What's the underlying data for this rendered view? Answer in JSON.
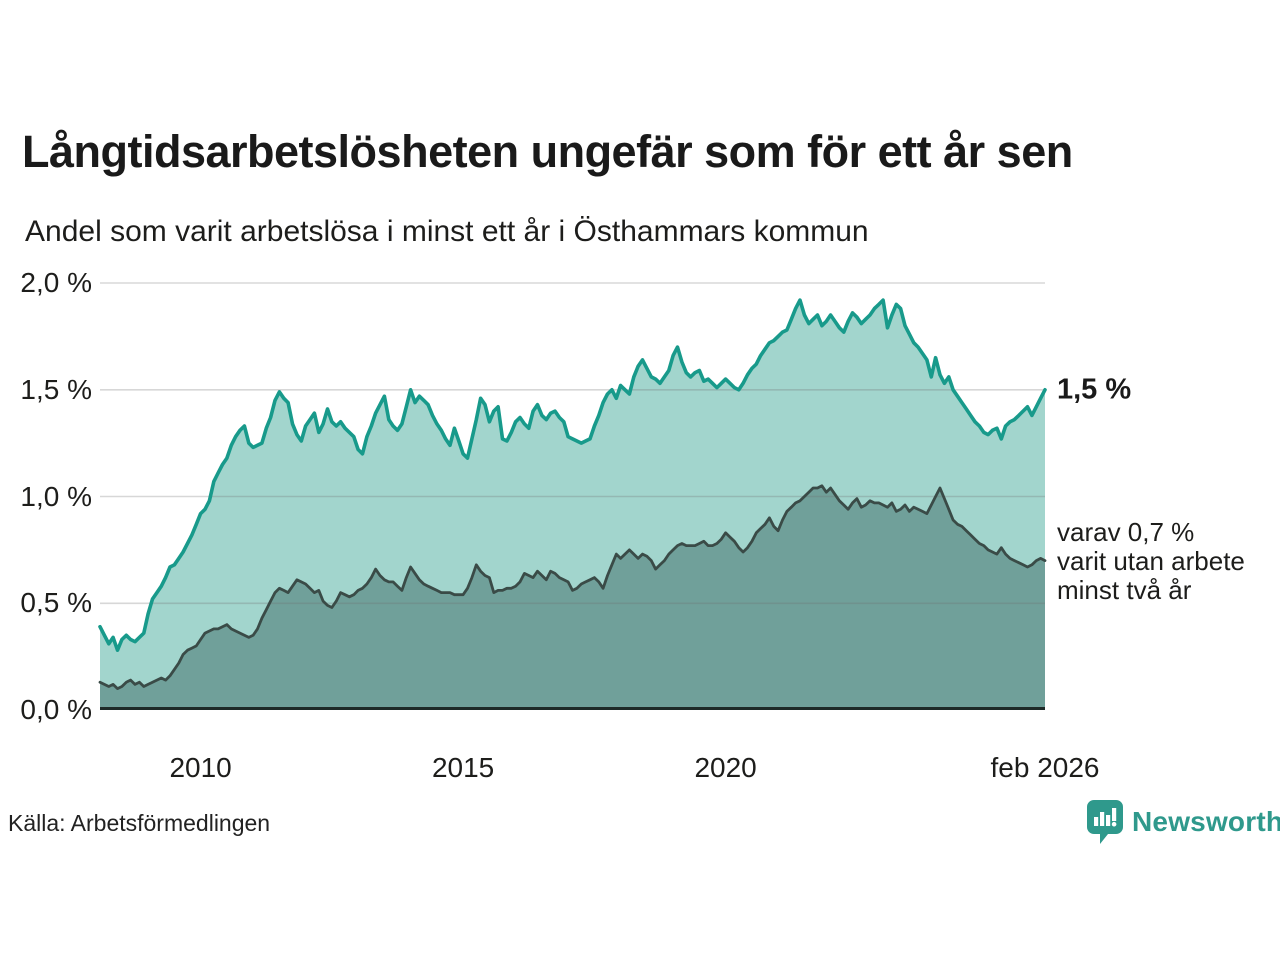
{
  "title": "Långtidsarbetslösheten ungefär som för ett år sen",
  "subtitle": "Andel som varit arbetslösa i minst ett år i Östhammars kommun",
  "source": "Källa: Arbetsförmedlingen",
  "brand": {
    "name": "Newsworthy",
    "icon": "newsworthy-bubble-chart-icon"
  },
  "annotations": {
    "end_label_primary": "1,5 %",
    "end_label_secondary_lines": [
      "varav 0,7 %",
      "varit utan arbete",
      "minst två år"
    ]
  },
  "colors": {
    "teal_line": "#189a8b",
    "light_fill": "#a2d5cd",
    "dark_fill": "#70a09a",
    "dark_line": "#3a4b47",
    "grid": "rgba(110,110,110,0.28)",
    "grid_top": "#d9d9d9",
    "baseline": "#1e2a28",
    "brand_teal": "#2f998c"
  },
  "chart_data": {
    "type": "area",
    "title": "Långtidsarbetslösheten ungefär som för ett år sen",
    "subtitle": "Andel som varit arbetslösa i minst ett år i Östhammars kommun",
    "unit": "%",
    "x_start": "2008-02",
    "x_end": "2026-02",
    "interval": "monthly",
    "x_domain": [
      2008.083,
      2026.083
    ],
    "ylim": [
      0,
      2.0
    ],
    "grid": true,
    "y_ticks": [
      {
        "label": "2,0 %",
        "value": 2.0
      },
      {
        "label": "1,5 %",
        "value": 1.5
      },
      {
        "label": "1,0 %",
        "value": 1.0
      },
      {
        "label": "0,5 %",
        "value": 0.5
      },
      {
        "label": "0,0 %",
        "value": 0.0
      }
    ],
    "x_ticks": [
      {
        "label": "2010",
        "year": 2010.0
      },
      {
        "label": "2015",
        "year": 2015.0
      },
      {
        "label": "2020",
        "year": 2020.0
      },
      {
        "label": "feb 2026",
        "year": 2026.083
      }
    ],
    "series": [
      {
        "name": "Andel arbetslösa minst ett år",
        "end_value": 1.5,
        "end_label": "1,5 %",
        "values": [
          0.39,
          0.35,
          0.31,
          0.34,
          0.28,
          0.33,
          0.35,
          0.33,
          0.32,
          0.34,
          0.36,
          0.45,
          0.52,
          0.55,
          0.58,
          0.62,
          0.67,
          0.68,
          0.71,
          0.74,
          0.78,
          0.82,
          0.87,
          0.92,
          0.94,
          0.98,
          1.07,
          1.11,
          1.15,
          1.18,
          1.24,
          1.28,
          1.31,
          1.33,
          1.25,
          1.23,
          1.24,
          1.25,
          1.32,
          1.37,
          1.45,
          1.49,
          1.46,
          1.44,
          1.34,
          1.29,
          1.26,
          1.33,
          1.36,
          1.39,
          1.3,
          1.34,
          1.41,
          1.35,
          1.33,
          1.35,
          1.32,
          1.3,
          1.28,
          1.22,
          1.2,
          1.28,
          1.33,
          1.39,
          1.43,
          1.47,
          1.36,
          1.33,
          1.31,
          1.34,
          1.42,
          1.5,
          1.44,
          1.47,
          1.45,
          1.43,
          1.38,
          1.34,
          1.31,
          1.27,
          1.24,
          1.32,
          1.26,
          1.2,
          1.18,
          1.27,
          1.36,
          1.46,
          1.43,
          1.35,
          1.4,
          1.42,
          1.27,
          1.26,
          1.3,
          1.35,
          1.37,
          1.34,
          1.32,
          1.4,
          1.43,
          1.38,
          1.36,
          1.39,
          1.4,
          1.37,
          1.35,
          1.28,
          1.27,
          1.26,
          1.25,
          1.26,
          1.27,
          1.33,
          1.38,
          1.44,
          1.48,
          1.5,
          1.46,
          1.52,
          1.5,
          1.48,
          1.56,
          1.61,
          1.64,
          1.6,
          1.56,
          1.55,
          1.53,
          1.56,
          1.59,
          1.66,
          1.7,
          1.63,
          1.58,
          1.56,
          1.58,
          1.59,
          1.54,
          1.55,
          1.53,
          1.51,
          1.53,
          1.55,
          1.53,
          1.51,
          1.5,
          1.53,
          1.57,
          1.6,
          1.62,
          1.66,
          1.69,
          1.72,
          1.73,
          1.75,
          1.77,
          1.78,
          1.83,
          1.88,
          1.92,
          1.85,
          1.81,
          1.83,
          1.85,
          1.8,
          1.82,
          1.85,
          1.82,
          1.79,
          1.77,
          1.82,
          1.86,
          1.84,
          1.81,
          1.83,
          1.85,
          1.88,
          1.9,
          1.92,
          1.79,
          1.85,
          1.9,
          1.88,
          1.8,
          1.76,
          1.72,
          1.7,
          1.67,
          1.64,
          1.56,
          1.65,
          1.57,
          1.53,
          1.56,
          1.5,
          1.47,
          1.44,
          1.41,
          1.38,
          1.35,
          1.33,
          1.3,
          1.29,
          1.31,
          1.32,
          1.27,
          1.33,
          1.35,
          1.36,
          1.38,
          1.4,
          1.42,
          1.38,
          1.42,
          1.46,
          1.5
        ]
      },
      {
        "name": "Andel utan arbete minst två år",
        "end_value": 0.7,
        "end_label": "varav 0,7 % varit utan arbete minst två år",
        "values": [
          0.13,
          0.12,
          0.11,
          0.12,
          0.1,
          0.11,
          0.13,
          0.14,
          0.12,
          0.13,
          0.11,
          0.12,
          0.13,
          0.14,
          0.15,
          0.14,
          0.16,
          0.19,
          0.22,
          0.26,
          0.28,
          0.29,
          0.3,
          0.33,
          0.36,
          0.37,
          0.38,
          0.38,
          0.39,
          0.4,
          0.38,
          0.37,
          0.36,
          0.35,
          0.34,
          0.35,
          0.38,
          0.43,
          0.47,
          0.51,
          0.55,
          0.57,
          0.56,
          0.55,
          0.58,
          0.61,
          0.6,
          0.59,
          0.57,
          0.55,
          0.56,
          0.51,
          0.49,
          0.48,
          0.51,
          0.55,
          0.54,
          0.53,
          0.54,
          0.56,
          0.57,
          0.59,
          0.62,
          0.66,
          0.63,
          0.61,
          0.6,
          0.6,
          0.58,
          0.56,
          0.62,
          0.67,
          0.64,
          0.61,
          0.59,
          0.58,
          0.57,
          0.56,
          0.55,
          0.55,
          0.55,
          0.54,
          0.54,
          0.54,
          0.57,
          0.62,
          0.68,
          0.65,
          0.63,
          0.62,
          0.55,
          0.56,
          0.56,
          0.57,
          0.57,
          0.58,
          0.6,
          0.64,
          0.63,
          0.62,
          0.65,
          0.63,
          0.61,
          0.65,
          0.64,
          0.62,
          0.61,
          0.6,
          0.56,
          0.57,
          0.59,
          0.6,
          0.61,
          0.62,
          0.6,
          0.57,
          0.63,
          0.68,
          0.73,
          0.71,
          0.73,
          0.75,
          0.73,
          0.71,
          0.73,
          0.72,
          0.7,
          0.66,
          0.68,
          0.7,
          0.73,
          0.75,
          0.77,
          0.78,
          0.77,
          0.77,
          0.77,
          0.78,
          0.79,
          0.77,
          0.77,
          0.78,
          0.8,
          0.83,
          0.81,
          0.79,
          0.76,
          0.74,
          0.76,
          0.79,
          0.83,
          0.85,
          0.87,
          0.9,
          0.86,
          0.84,
          0.89,
          0.93,
          0.95,
          0.97,
          0.98,
          1.0,
          1.02,
          1.04,
          1.04,
          1.05,
          1.02,
          1.04,
          1.01,
          0.98,
          0.96,
          0.94,
          0.97,
          0.99,
          0.95,
          0.96,
          0.98,
          0.97,
          0.97,
          0.96,
          0.95,
          0.97,
          0.93,
          0.94,
          0.96,
          0.93,
          0.95,
          0.94,
          0.93,
          0.92,
          0.96,
          1.0,
          1.04,
          0.99,
          0.94,
          0.89,
          0.87,
          0.86,
          0.84,
          0.82,
          0.8,
          0.78,
          0.77,
          0.75,
          0.74,
          0.73,
          0.76,
          0.73,
          0.71,
          0.7,
          0.69,
          0.68,
          0.67,
          0.68,
          0.7,
          0.71,
          0.7
        ]
      }
    ]
  }
}
